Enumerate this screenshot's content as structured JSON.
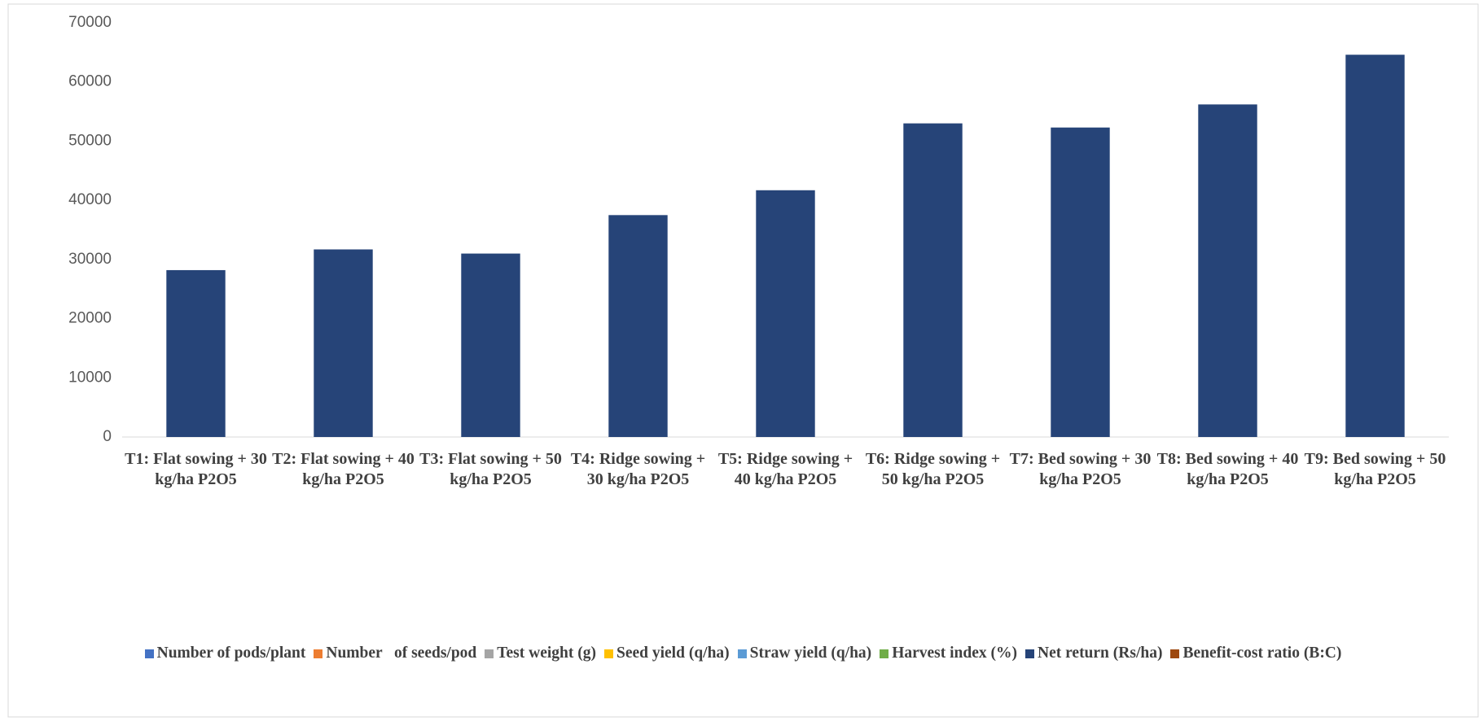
{
  "chart_data": {
    "type": "bar",
    "categories": [
      "T1: Flat sowing + 30 kg/ha P2O5",
      "T2: Flat sowing + 40 kg/ha P2O5",
      "T3: Flat sowing + 50 kg/ha P2O5",
      "T4: Ridge sowing + 30 kg/ha P2O5",
      "T5: Ridge sowing + 40 kg/ha P2O5",
      "T6: Ridge sowing + 50 kg/ha P2O5",
      "T7: Bed sowing + 30 kg/ha P2O5",
      "T8: Bed sowing + 40 kg/ha P2O5",
      "T9: Bed sowing + 50 kg/ha P2O5"
    ],
    "series": [
      {
        "name": "Number of pods/plant",
        "color": "#4472c4",
        "values": [
          null,
          null,
          null,
          null,
          null,
          null,
          null,
          null,
          null
        ]
      },
      {
        "name": "Number   of seeds/pod",
        "color": "#ed7d31",
        "values": [
          null,
          null,
          null,
          null,
          null,
          null,
          null,
          null,
          null
        ]
      },
      {
        "name": "Test weight (g)",
        "color": "#a5a5a5",
        "values": [
          null,
          null,
          null,
          null,
          null,
          null,
          null,
          null,
          null
        ]
      },
      {
        "name": "Seed yield (q/ha)",
        "color": "#ffc000",
        "values": [
          null,
          null,
          null,
          null,
          null,
          null,
          null,
          null,
          null
        ]
      },
      {
        "name": "Straw yield (q/ha)",
        "color": "#5b9bd5",
        "values": [
          null,
          null,
          null,
          null,
          null,
          null,
          null,
          null,
          null
        ]
      },
      {
        "name": "Harvest index (%)",
        "color": "#70ad47",
        "values": [
          null,
          null,
          null,
          null,
          null,
          null,
          null,
          null,
          null
        ]
      },
      {
        "name": "Net return (Rs/ha)",
        "color": "#264478",
        "values": [
          28200,
          31700,
          31000,
          37500,
          41700,
          53000,
          52300,
          56200,
          64600
        ]
      },
      {
        "name": "Benefit-cost ratio (B:C)",
        "color": "#9e480e",
        "values": [
          null,
          null,
          null,
          null,
          null,
          null,
          null,
          null,
          null
        ]
      }
    ],
    "ylim": [
      0,
      70000
    ],
    "yticks": [
      0,
      10000,
      20000,
      30000,
      40000,
      50000,
      60000,
      70000
    ],
    "grid": false,
    "legend": "bottom"
  }
}
